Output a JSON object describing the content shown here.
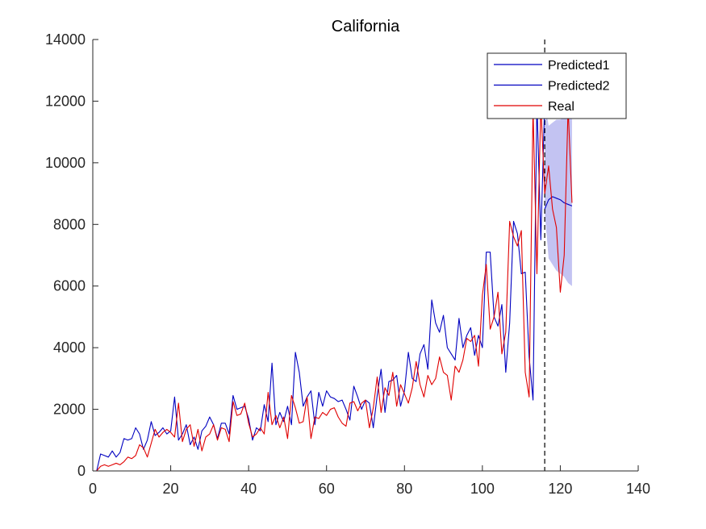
{
  "chart_data": {
    "type": "line",
    "title": "California",
    "xlabel": "",
    "ylabel": "",
    "xlim": [
      0,
      140
    ],
    "ylim": [
      0,
      14000
    ],
    "xticks": [
      0,
      20,
      40,
      60,
      80,
      100,
      120,
      140
    ],
    "yticks": [
      0,
      2000,
      4000,
      6000,
      8000,
      10000,
      12000,
      14000
    ],
    "grid": false,
    "legend_position": "top-right",
    "forecast_start": 116,
    "series": [
      {
        "name": "Predicted1",
        "color": "#0000c0",
        "x": [
          1,
          2,
          3,
          4,
          5,
          6,
          7,
          8,
          9,
          10,
          11,
          12,
          13,
          14,
          15,
          16,
          17,
          18,
          19,
          20,
          21,
          22,
          23,
          24,
          25,
          26,
          27,
          28,
          29,
          30,
          31,
          32,
          33,
          34,
          35,
          36,
          37,
          38,
          39,
          40,
          41,
          42,
          43,
          44,
          45,
          46,
          47,
          48,
          49,
          50,
          51,
          52,
          53,
          54,
          55,
          56,
          57,
          58,
          59,
          60,
          61,
          62,
          63,
          64,
          65,
          66,
          67,
          68,
          69,
          70,
          71,
          72,
          73,
          74,
          75,
          76,
          77,
          78,
          79,
          80,
          81,
          82,
          83,
          84,
          85,
          86,
          87,
          88,
          89,
          90,
          91,
          92,
          93,
          94,
          95,
          96,
          97,
          98,
          99,
          100,
          101,
          102,
          103,
          104,
          105,
          106,
          107,
          108,
          109,
          110,
          111,
          112,
          113,
          114,
          115,
          116
        ],
        "values": [
          0,
          550,
          500,
          450,
          650,
          450,
          600,
          1050,
          1000,
          1050,
          1400,
          1200,
          700,
          1000,
          1600,
          1150,
          1250,
          1400,
          1200,
          1300,
          2400,
          1000,
          1200,
          1500,
          850,
          1100,
          700,
          1300,
          1450,
          1750,
          1500,
          1050,
          1550,
          1550,
          1200,
          2450,
          2000,
          2050,
          2100,
          1700,
          1000,
          1400,
          1300,
          2150,
          1600,
          3500,
          1500,
          1900,
          1600,
          2100,
          1500,
          3850,
          3200,
          2100,
          2400,
          2600,
          1500,
          2550,
          2100,
          2600,
          2400,
          2350,
          2250,
          2300,
          2000,
          1650,
          2750,
          2400,
          2000,
          2300,
          2200,
          1400,
          2450,
          3300,
          1900,
          2900,
          2950,
          3100,
          2100,
          2600,
          3850,
          3000,
          2900,
          3800,
          4100,
          3300,
          5550,
          4800,
          4500,
          5050,
          4000,
          3800,
          3600,
          4950,
          4000,
          4400,
          4650,
          3750,
          4400,
          4000,
          7100,
          7100,
          5000,
          4700,
          5400,
          3200,
          4800,
          8100,
          7700,
          6400,
          6450,
          3700,
          2300,
          12000,
          7500,
          12000
        ]
      },
      {
        "name": "Predicted2",
        "color": "#0000c0",
        "x": [
          116,
          117,
          118,
          119,
          120,
          121,
          122,
          123
        ],
        "values": [
          8500,
          8800,
          8900,
          8850,
          8800,
          8700,
          8650,
          8600
        ],
        "band_upper": [
          12000,
          11200,
          11300,
          11400,
          11400,
          11500,
          11500,
          11500
        ],
        "band_lower": [
          8400,
          6900,
          6700,
          6500,
          6400,
          6300,
          6100,
          6000
        ]
      },
      {
        "name": "Real",
        "color": "#e00000",
        "x": [
          1,
          2,
          3,
          4,
          5,
          6,
          7,
          8,
          9,
          10,
          11,
          12,
          13,
          14,
          15,
          16,
          17,
          18,
          19,
          20,
          21,
          22,
          23,
          24,
          25,
          26,
          27,
          28,
          29,
          30,
          31,
          32,
          33,
          34,
          35,
          36,
          37,
          38,
          39,
          40,
          41,
          42,
          43,
          44,
          45,
          46,
          47,
          48,
          49,
          50,
          51,
          52,
          53,
          54,
          55,
          56,
          57,
          58,
          59,
          60,
          61,
          62,
          63,
          64,
          65,
          66,
          67,
          68,
          69,
          70,
          71,
          72,
          73,
          74,
          75,
          76,
          77,
          78,
          79,
          80,
          81,
          82,
          83,
          84,
          85,
          86,
          87,
          88,
          89,
          90,
          91,
          92,
          93,
          94,
          95,
          96,
          97,
          98,
          99,
          100,
          101,
          102,
          103,
          104,
          105,
          106,
          107,
          108,
          109,
          110,
          111,
          112,
          113,
          114,
          115,
          116,
          117,
          118,
          119,
          120,
          121,
          122,
          123
        ],
        "values": [
          0,
          150,
          200,
          150,
          200,
          250,
          200,
          300,
          450,
          400,
          500,
          850,
          750,
          450,
          900,
          1350,
          1100,
          1250,
          1350,
          1250,
          1100,
          2200,
          950,
          1350,
          1500,
          800,
          1350,
          650,
          1100,
          1200,
          1500,
          1000,
          1400,
          1350,
          950,
          2250,
          1800,
          1850,
          2200,
          1550,
          1100,
          1200,
          1400,
          1200,
          2550,
          1500,
          1800,
          1400,
          1750,
          1050,
          2450,
          2050,
          1550,
          1600,
          2400,
          1050,
          1750,
          1700,
          1900,
          1800,
          2000,
          2050,
          1750,
          1550,
          1450,
          2200,
          2250,
          1950,
          2200,
          2300,
          1400,
          2050,
          3050,
          1900,
          2700,
          2450,
          3200,
          2100,
          2800,
          2500,
          2200,
          2700,
          3550,
          2800,
          2400,
          3100,
          2800,
          3000,
          3700,
          3200,
          3100,
          2300,
          3400,
          3200,
          3600,
          4300,
          4200,
          4400,
          3400,
          5700,
          6700,
          4600,
          5000,
          5800,
          3800,
          4500,
          8100,
          7600,
          7300,
          7800,
          3200,
          2400,
          11800,
          6400,
          11900,
          9000,
          9900,
          8500,
          7900,
          5800,
          7000,
          11800,
          8700
        ]
      }
    ]
  }
}
